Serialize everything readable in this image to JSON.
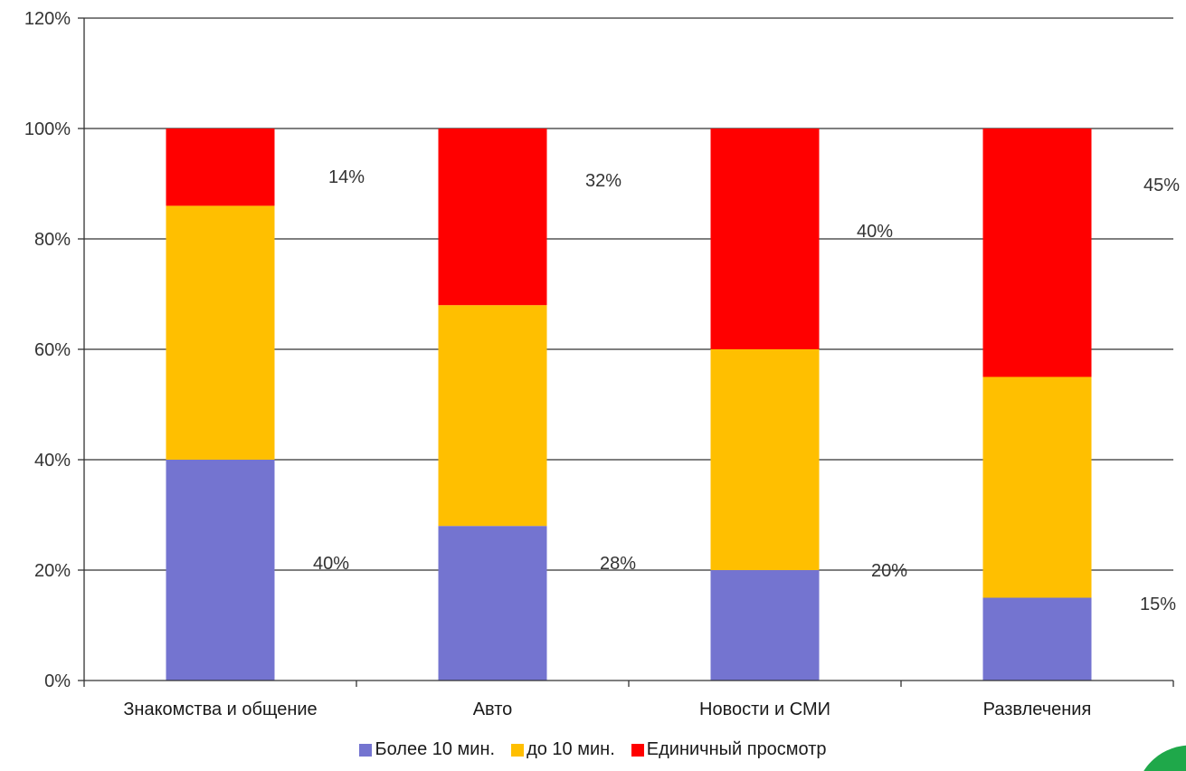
{
  "chart_data": {
    "type": "bar",
    "stacked": true,
    "categories": [
      "Знакомства и общение",
      "Авто",
      "Новости и СМИ",
      "Развлечения"
    ],
    "series": [
      {
        "name": "Более 10 мин.",
        "color": "#7474d0",
        "values": [
          40,
          28,
          20,
          15
        ],
        "labels": [
          "40%",
          "28%",
          "20%",
          "15%"
        ]
      },
      {
        "name": "до 10 мин.",
        "color": "#ffbf00",
        "values": [
          46,
          40,
          40,
          40
        ],
        "labels": []
      },
      {
        "name": "Единичный просмотр",
        "color": "#ff0000",
        "values": [
          14,
          32,
          40,
          45
        ],
        "labels": [
          "14%",
          "32%",
          "40%",
          "45%"
        ]
      }
    ],
    "ylim": [
      0,
      120
    ],
    "yticks": [
      "0%",
      "20%",
      "40%",
      "60%",
      "80%",
      "100%",
      "120%"
    ],
    "grid": true,
    "legend_position": "bottom"
  }
}
